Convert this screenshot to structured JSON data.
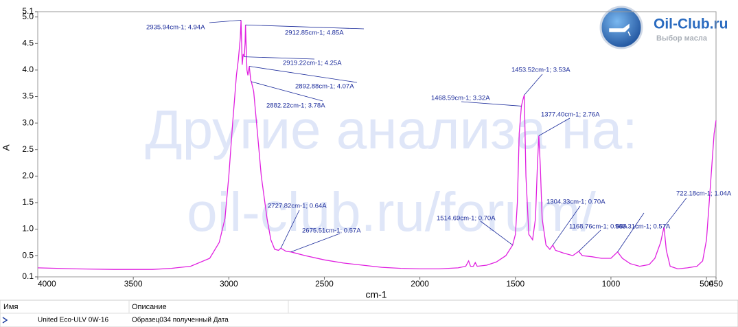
{
  "chart_data": {
    "type": "line",
    "ylabel": "A",
    "xlabel": "cm-1",
    "xlim": [
      4000,
      450
    ],
    "ylim": [
      0.1,
      5.1
    ],
    "xticks": [
      4000,
      3500,
      3000,
      2500,
      2000,
      1500,
      1000,
      500,
      450
    ],
    "yticks": [
      0.1,
      0.5,
      {
        "value": 1,
        "label": "1.0"
      },
      1.5,
      {
        "value": 2,
        "label": "2.0"
      },
      2.5,
      {
        "value": 3,
        "label": "3.0"
      },
      3.5,
      {
        "value": 4,
        "label": "4.0"
      },
      4.5,
      {
        "value": 5,
        "label": "5.0"
      },
      5.1
    ],
    "x": [
      4000,
      3800,
      3600,
      3400,
      3300,
      3200,
      3100,
      3050,
      3020,
      3000,
      2980,
      2960,
      2950,
      2940,
      2935.94,
      2930,
      2925,
      2919.22,
      2915,
      2912.85,
      2905,
      2900,
      2892.88,
      2885,
      2882.22,
      2870,
      2860,
      2850,
      2830,
      2800,
      2780,
      2760,
      2740,
      2727.82,
      2700,
      2675.51,
      2600,
      2500,
      2400,
      2300,
      2200,
      2100,
      2000,
      1900,
      1800,
      1760,
      1745,
      1735,
      1720,
      1710,
      1700,
      1650,
      1600,
      1550,
      1514.69,
      1500,
      1490,
      1480,
      1468.59,
      1460,
      1453.52,
      1445,
      1430,
      1410,
      1395,
      1385,
      1377.4,
      1370,
      1360,
      1340,
      1320,
      1304.33,
      1290,
      1250,
      1200,
      1168.76,
      1150,
      1100,
      1050,
      1000,
      965.31,
      940,
      900,
      850,
      800,
      770,
      740,
      722.18,
      710,
      690,
      650,
      600,
      550,
      520,
      500,
      480,
      460,
      450
    ],
    "series": [
      {
        "name": "United Eco-ULV 0W-16",
        "description": "Образец034 полученный Дата",
        "color": "#e020e0",
        "values": [
          0.27,
          0.25,
          0.24,
          0.24,
          0.26,
          0.3,
          0.45,
          0.75,
          1.2,
          2.0,
          3.0,
          3.9,
          4.2,
          4.6,
          4.94,
          4.1,
          4.3,
          4.25,
          4.5,
          4.85,
          4.0,
          3.9,
          4.07,
          3.8,
          3.78,
          3.6,
          3.2,
          2.8,
          2.0,
          1.2,
          0.8,
          0.62,
          0.6,
          0.64,
          0.58,
          0.57,
          0.5,
          0.42,
          0.36,
          0.32,
          0.28,
          0.26,
          0.25,
          0.25,
          0.27,
          0.3,
          0.4,
          0.3,
          0.3,
          0.37,
          0.3,
          0.32,
          0.38,
          0.5,
          0.7,
          0.9,
          1.5,
          2.8,
          3.32,
          3.45,
          3.53,
          2.0,
          0.9,
          0.8,
          1.2,
          2.2,
          2.76,
          2.2,
          1.2,
          0.7,
          0.62,
          0.7,
          0.6,
          0.55,
          0.5,
          0.58,
          0.5,
          0.48,
          0.45,
          0.45,
          0.57,
          0.45,
          0.35,
          0.3,
          0.33,
          0.45,
          0.75,
          1.04,
          0.6,
          0.3,
          0.25,
          0.27,
          0.3,
          0.4,
          0.8,
          1.8,
          2.8,
          3.05
        ]
      }
    ],
    "annotations": [
      {
        "label": "2935.94cm-1; 4.94A",
        "x": 2935.94,
        "y": 4.94
      },
      {
        "label": "2912.85cm-1; 4.85A",
        "x": 2912.85,
        "y": 4.85
      },
      {
        "label": "2919.22cm-1; 4.25A",
        "x": 2919.22,
        "y": 4.25
      },
      {
        "label": "2892.88cm-1; 4.07A",
        "x": 2892.88,
        "y": 4.07
      },
      {
        "label": "2882.22cm-1; 3.78A",
        "x": 2882.22,
        "y": 3.78
      },
      {
        "label": "2727.82cm-1; 0.64A",
        "x": 2727.82,
        "y": 0.64
      },
      {
        "label": "2675.51cm-1; 0.57A",
        "x": 2675.51,
        "y": 0.57
      },
      {
        "label": "1514.69cm-1; 0.70A",
        "x": 1514.69,
        "y": 0.7
      },
      {
        "label": "1468.59cm-1; 3.32A",
        "x": 1468.59,
        "y": 3.32
      },
      {
        "label": "1453.52cm-1; 3.53A",
        "x": 1453.52,
        "y": 3.53
      },
      {
        "label": "1377.40cm-1; 2.76A",
        "x": 1377.4,
        "y": 2.76
      },
      {
        "label": "1304.33cm-1; 0.70A",
        "x": 1304.33,
        "y": 0.7
      },
      {
        "label": "1168.76cm-1; 0.58A",
        "x": 1168.76,
        "y": 0.58
      },
      {
        "label": "965.31cm-1; 0.57A",
        "x": 965.31,
        "y": 0.57
      },
      {
        "label": "722.18cm-1; 1.04A",
        "x": 722.18,
        "y": 1.04
      }
    ]
  },
  "legend_headers": [
    "Имя",
    "Описание"
  ],
  "watermark": [
    "Другие анализа на:",
    "oil-club.ru/forum/"
  ],
  "logo": {
    "title": "Oil-Club.ru",
    "subtitle": "Выбор масла"
  }
}
